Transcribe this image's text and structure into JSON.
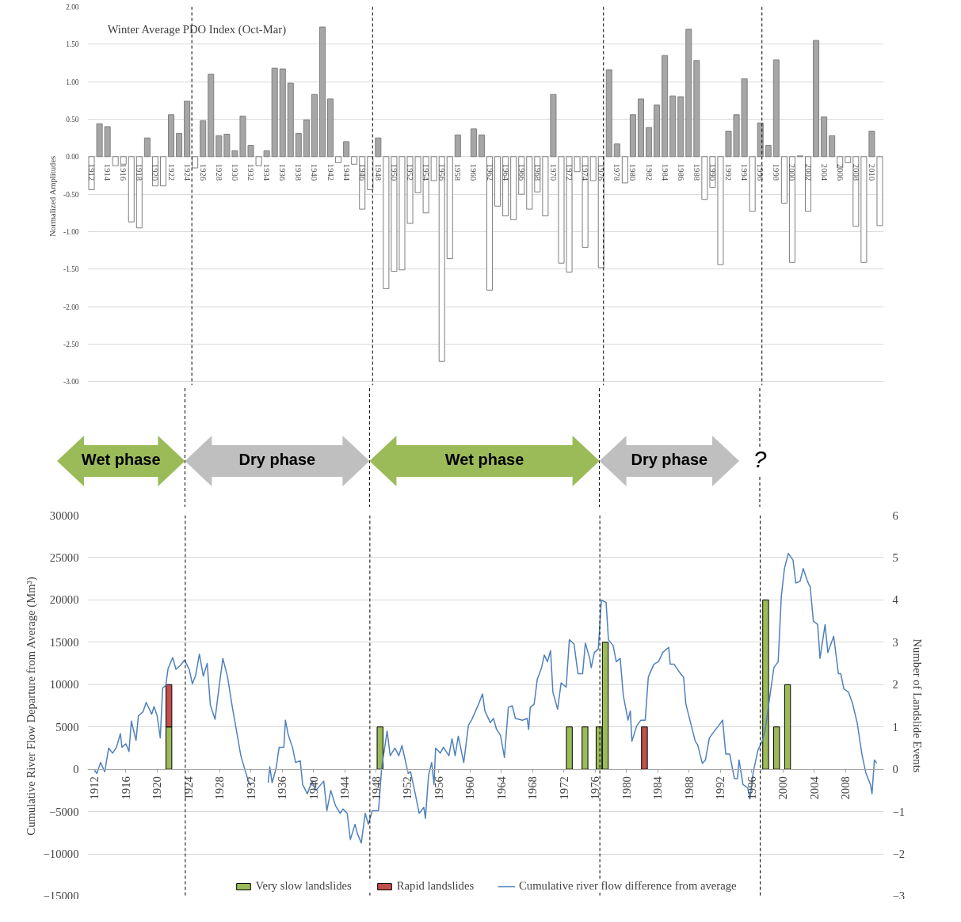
{
  "chart_data": [
    {
      "type": "bar",
      "title": "Winter Average PDO Index (Oct-Mar)",
      "ylabel": "Normalized Amplitudes",
      "x": [
        1912,
        1913,
        1914,
        1915,
        1916,
        1917,
        1918,
        1919,
        1920,
        1921,
        1922,
        1923,
        1924,
        1925,
        1926,
        1927,
        1928,
        1929,
        1930,
        1931,
        1932,
        1933,
        1934,
        1935,
        1936,
        1937,
        1938,
        1939,
        1940,
        1941,
        1942,
        1943,
        1944,
        1945,
        1946,
        1947,
        1948,
        1949,
        1950,
        1951,
        1952,
        1953,
        1954,
        1955,
        1956,
        1957,
        1958,
        1959,
        1960,
        1961,
        1962,
        1963,
        1964,
        1965,
        1966,
        1967,
        1968,
        1969,
        1970,
        1971,
        1972,
        1973,
        1974,
        1975,
        1976,
        1977,
        1978,
        1979,
        1980,
        1981,
        1982,
        1983,
        1984,
        1985,
        1986,
        1987,
        1988,
        1989,
        1990,
        1991,
        1992,
        1993,
        1994,
        1995,
        1996,
        1997,
        1998,
        1999,
        2000,
        2001,
        2002,
        2003,
        2004,
        2005,
        2006,
        2007,
        2008,
        2009,
        2010,
        2011
      ],
      "values": [
        -0.44,
        0.44,
        0.4,
        -0.12,
        -0.1,
        -0.87,
        -0.95,
        0.25,
        -0.39,
        -0.39,
        0.56,
        0.31,
        0.74,
        -0.15,
        0.48,
        1.1,
        0.28,
        0.3,
        0.08,
        0.54,
        0.15,
        -0.12,
        0.08,
        1.18,
        1.17,
        0.98,
        0.31,
        0.49,
        0.83,
        1.73,
        0.77,
        -0.08,
        0.2,
        -0.1,
        -0.7,
        -0.44,
        0.25,
        -1.76,
        -1.53,
        -1.51,
        -0.89,
        -0.48,
        -0.75,
        -0.32,
        -2.73,
        -1.36,
        0.29,
        null,
        0.37,
        0.29,
        -1.78,
        -0.66,
        -0.79,
        -0.84,
        -0.5,
        -0.7,
        -0.47,
        -0.79,
        0.83,
        -1.42,
        -1.54,
        -0.2,
        -1.21,
        -0.32,
        -1.48,
        1.16,
        0.17,
        -0.35,
        0.56,
        0.77,
        0.39,
        0.69,
        1.35,
        0.81,
        0.8,
        1.7,
        1.28,
        -0.57,
        -0.41,
        -1.44,
        0.34,
        0.56,
        1.04,
        -0.73,
        0.45,
        0.15,
        1.29,
        -0.62,
        -1.41,
        0.01,
        -0.73,
        1.55,
        0.53,
        0.28,
        -0.15,
        -0.08,
        -0.93,
        -1.41,
        0.34,
        -0.92
      ],
      "colors": [
        "#ffffff",
        "#a6a6a6",
        "#a6a6a6",
        "#ffffff",
        "#ffffff",
        "#ffffff",
        "#ffffff",
        "#a6a6a6",
        "#ffffff",
        "#ffffff",
        "#a6a6a6",
        "#a6a6a6",
        "#a6a6a6",
        "#ffffff",
        "#a6a6a6",
        "#a6a6a6",
        "#a6a6a6",
        "#a6a6a6",
        "#a6a6a6",
        "#a6a6a6",
        "#a6a6a6",
        "#ffffff",
        "#a6a6a6",
        "#a6a6a6",
        "#a6a6a6",
        "#a6a6a6",
        "#a6a6a6",
        "#a6a6a6",
        "#a6a6a6",
        "#a6a6a6",
        "#a6a6a6",
        "#ffffff",
        "#a6a6a6",
        "#ffffff",
        "#ffffff",
        "#ffffff",
        "#a6a6a6",
        "#ffffff",
        "#ffffff",
        "#ffffff",
        "#ffffff",
        "#ffffff",
        "#ffffff",
        "#ffffff",
        "#ffffff",
        "#ffffff",
        "#a6a6a6",
        "#a6a6a6",
        "#a6a6a6",
        "#a6a6a6",
        "#ffffff",
        "#ffffff",
        "#ffffff",
        "#ffffff",
        "#ffffff",
        "#ffffff",
        "#ffffff",
        "#ffffff",
        "#a6a6a6",
        "#ffffff",
        "#ffffff",
        "#ffffff",
        "#ffffff",
        "#ffffff",
        "#ffffff",
        "#a6a6a6",
        "#a6a6a6",
        "#ffffff",
        "#a6a6a6",
        "#a6a6a6",
        "#a6a6a6",
        "#a6a6a6",
        "#a6a6a6",
        "#a6a6a6",
        "#a6a6a6",
        "#a6a6a6",
        "#a6a6a6",
        "#ffffff",
        "#ffffff",
        "#ffffff",
        "#a6a6a6",
        "#a6a6a6",
        "#a6a6a6",
        "#ffffff",
        "#a6a6a6",
        "#a6a6a6",
        "#a6a6a6",
        "#ffffff",
        "#ffffff",
        "#a6a6a6",
        "#ffffff",
        "#a6a6a6",
        "#a6a6a6",
        "#a6a6a6",
        "#ffffff",
        "#ffffff",
        "#ffffff",
        "#ffffff",
        "#a6a6a6",
        "#ffffff"
      ],
      "xlim": [
        1911.5,
        2011.5
      ],
      "xticks": [
        1912,
        1914,
        1916,
        1918,
        1920,
        1922,
        1924,
        1926,
        1928,
        1930,
        1932,
        1934,
        1936,
        1938,
        1940,
        1942,
        1944,
        1946,
        1948,
        1950,
        1952,
        1954,
        1956,
        1958,
        1960,
        1962,
        1964,
        1966,
        1968,
        1970,
        1972,
        1974,
        1976,
        1978,
        1980,
        1982,
        1984,
        1986,
        1988,
        1990,
        1992,
        1994,
        1996,
        1998,
        2000,
        2002,
        2004,
        2006,
        2008,
        2010
      ],
      "ylim": [
        -3.05,
        2.0
      ],
      "yticks": [
        {
          "value": 2,
          "label": "2.00"
        },
        {
          "value": 1.5,
          "label": "1.50"
        },
        {
          "value": 1,
          "label": "1.00"
        },
        {
          "value": 0.5,
          "label": "0.50"
        },
        {
          "value": 0,
          "label": "0.00"
        },
        {
          "value": -0.5,
          "label": "-0.50"
        },
        {
          "value": -1,
          "label": "-1.00"
        },
        {
          "value": -1.5,
          "label": "-1.50"
        },
        {
          "value": -2,
          "label": "-2.00"
        },
        {
          "value": -2.5,
          "label": "-2.50"
        },
        {
          "value": -3,
          "label": "-3.00"
        }
      ],
      "grid": "y",
      "ref_lines": [
        {
          "axis": "x",
          "value": 1924.6,
          "line_style": "dashed",
          "color": "#000000"
        },
        {
          "axis": "x",
          "value": 1947.3,
          "line_style": "dashed",
          "color": "#000000"
        },
        {
          "axis": "x",
          "value": 1976.3,
          "line_style": "dashed",
          "color": "#000000"
        },
        {
          "axis": "x",
          "value": 1996.2,
          "line_style": "dashed",
          "color": "#000000"
        }
      ]
    },
    {
      "type": "line",
      "ylabel": "Cumulative River Flow Departure from Average (Mm³)",
      "y2label": "Number of Landslide Events",
      "series": [
        {
          "name": "Very slow landslides",
          "type": "bar",
          "axis": "y2",
          "color": "#9bbb59",
          "x": [
            1921.5,
            1948.5,
            1972.7,
            1974.7,
            1976.5,
            1977.3,
            1997.8,
            1999.2,
            2000.6
          ],
          "values": [
            1,
            1,
            1,
            1,
            1,
            3,
            4,
            1,
            2
          ]
        },
        {
          "name": "Rapid landslides",
          "type": "bar",
          "axis": "y2",
          "color": "#c0504d",
          "x": [
            1921.5,
            1982.3
          ],
          "base": [
            1,
            0
          ],
          "values": [
            1,
            1
          ]
        },
        {
          "name": "Cumulative river flow difference from average",
          "type": "line",
          "color": "#4f81bd",
          "x": [
            1912.0,
            1912.3,
            1912.76,
            1913.3,
            1913.8,
            1914.3,
            1914.8,
            1915.3,
            1915.5,
            1916.0,
            1916.4,
            1916.7,
            1917.3,
            1917.6,
            1918.2,
            1918.6,
            1919.3,
            1919.6,
            1920.0,
            1920.4,
            1920.7,
            1921.1,
            1921.4,
            1922.0,
            1922.4,
            1923.0,
            1923.5,
            1924.1,
            1924.5,
            1924.9,
            1925.4,
            1925.9,
            1926.4,
            1926.8,
            1927.4,
            1927.9,
            1928.4,
            1929.0,
            1929.6,
            1930.1,
            1930.7,
            1931.3,
            1931.8,
            1932.0,
            1933.0,
            1934.2,
            1934.4,
            1934.7,
            1935.2,
            1935.6,
            1936.2,
            1936.4,
            1936.75,
            1937.3,
            1937.7,
            1938.3,
            1938.6,
            1939.2,
            1939.8,
            1940.3,
            1941.3,
            1941.7,
            1942.2,
            1942.8,
            1943.4,
            1943.75,
            1944.3,
            1944.7,
            1945.3,
            1945.6,
            1946.1,
            1946.6,
            1947.0,
            1947.5,
            1948.3,
            1948.7,
            1949.4,
            1949.8,
            1950.4,
            1950.9,
            1951.3,
            1952.1,
            1952.4,
            1953.0,
            1953.5,
            1954.1,
            1954.3,
            1954.7,
            1955.1,
            1955.4,
            1955.6,
            1956.2,
            1956.6,
            1957.3,
            1957.7,
            1958.1,
            1958.5,
            1959.2,
            1959.8,
            1960.2,
            1961.1,
            1961.6,
            1961.9,
            1962.6,
            1963.0,
            1963.4,
            1963.9,
            1964.4,
            1964.9,
            1965.4,
            1965.8,
            1966.7,
            1967.3,
            1967.5,
            1967.7,
            1968.2,
            1968.6,
            1969.15,
            1969.5,
            1969.9,
            1970.3,
            1970.6,
            1971.2,
            1971.65,
            1972.3,
            1972.7,
            1973.3,
            1973.8,
            1974.4,
            1974.75,
            1975.3,
            1975.5,
            1975.9,
            1976.4,
            1976.8,
            1977.4,
            1977.7,
            1978.3,
            1978.7,
            1979.2,
            1979.6,
            1980.2,
            1980.5,
            1980.7,
            1981.3,
            1981.85,
            1982.4,
            1982.8,
            1983.5,
            1984.1,
            1984.65,
            1985.4,
            1985.6,
            1986.1,
            1986.9,
            1987.3,
            1987.6,
            1988.2,
            1988.8,
            1989.1,
            1989.7,
            1990.1,
            1990.6,
            1991.4,
            1991.75,
            1992.3,
            1992.7,
            1993.2,
            1993.8,
            1994.2,
            1994.4,
            1994.9,
            1995.5,
            1995.8,
            1996.2,
            1996.8,
            1997.35,
            1997.7,
            1998.85,
            1999.4,
            1999.8,
            2000.2,
            2000.7,
            2001.3,
            2001.65,
            2002.2,
            2002.6,
            2003.15,
            2003.5,
            2003.9,
            2004.45,
            2004.75,
            2005.4,
            2005.75,
            2006.5,
            2007.1,
            2007.4,
            2007.8,
            2008.4,
            2008.9,
            2009.5,
            2010.1,
            2010.6,
            2011.2,
            2011.4,
            2011.7,
            2012.0
          ],
          "values": [
            -100,
            -500,
            800,
            -300,
            2500,
            1900,
            2600,
            4200,
            2600,
            3000,
            2100,
            5700,
            3400,
            6300,
            6800,
            7900,
            6500,
            7400,
            6300,
            3700,
            9600,
            9900,
            11900,
            13200,
            11800,
            12300,
            12900,
            11800,
            10100,
            11000,
            13600,
            11000,
            12500,
            7600,
            5900,
            9600,
            13100,
            10900,
            7400,
            4800,
            1600,
            -300,
            -1800,
            -1600,
            null,
            -1600,
            300,
            -1600,
            100,
            2600,
            2600,
            5800,
            4100,
            2600,
            800,
            1000,
            -1800,
            -2900,
            -1400,
            -2500,
            -1400,
            -4900,
            -2500,
            -4300,
            -5200,
            -4700,
            -5200,
            -8300,
            -6500,
            -7600,
            -8700,
            -5200,
            -6500,
            -4900,
            -4900,
            100,
            4500,
            1600,
            2500,
            1600,
            2800,
            -500,
            -300,
            -2900,
            -5200,
            -4500,
            -5800,
            -700,
            800,
            -1800,
            2500,
            1900,
            2600,
            1600,
            3600,
            1600,
            3900,
            800,
            5200,
            5800,
            7700,
            8900,
            6900,
            5500,
            6000,
            4700,
            4000,
            1400,
            7300,
            7500,
            6000,
            5800,
            6000,
            4700,
            7300,
            7700,
            10600,
            12000,
            13500,
            12700,
            14000,
            9100,
            7100,
            10200,
            9700,
            15300,
            14800,
            11300,
            11300,
            14900,
            13100,
            12000,
            13800,
            14200,
            20000,
            19700,
            15300,
            14600,
            12700,
            13100,
            8700,
            5800,
            6900,
            3300,
            5100,
            5800,
            5800,
            10900,
            12400,
            12700,
            13800,
            14400,
            12400,
            12400,
            11300,
            10900,
            7700,
            5500,
            3300,
            2900,
            700,
            1100,
            3700,
            4700,
            5100,
            5800,
            1800,
            1800,
            -1100,
            -1100,
            1100,
            -1800,
            -2200,
            -3500,
            -400,
            2200,
            3300,
            4400,
            12000,
            12700,
            20400,
            23700,
            25500,
            24700,
            22000,
            22200,
            23700,
            22200,
            21500,
            17500,
            17100,
            13100,
            17100,
            13800,
            15700,
            11300,
            11300,
            9500,
            9100,
            7800,
            5500,
            1800,
            -400,
            -1800,
            -2900,
            1100,
            700
          ]
        }
      ],
      "xlim": [
        1911.1,
        2012.9
      ],
      "xticks": [
        1912,
        1916,
        1920,
        1924,
        1928,
        1932,
        1936,
        1940,
        1944,
        1948,
        1952,
        1956,
        1960,
        1964,
        1968,
        1972,
        1976,
        1980,
        1984,
        1988,
        1992,
        1996,
        2000,
        2004,
        2008
      ],
      "ylim": [
        -15000,
        30000
      ],
      "yticks": [
        -15000,
        -10000,
        -5000,
        0,
        5000,
        10000,
        15000,
        20000,
        25000,
        30000
      ],
      "y2lim": [
        -3,
        6
      ],
      "y2ticks": [
        -3,
        -2,
        -1,
        0,
        1,
        2,
        3,
        4,
        5,
        6
      ],
      "grid": "y",
      "legend": "bottom",
      "ref_lines": [
        {
          "axis": "x",
          "value": 1923.6,
          "line_style": "dashed",
          "color": "#000000"
        },
        {
          "axis": "x",
          "value": 1947.2,
          "line_style": "dashed",
          "color": "#000000"
        },
        {
          "axis": "x",
          "value": 1976.6,
          "line_style": "dashed",
          "color": "#000000"
        },
        {
          "axis": "x",
          "value": 1997.1,
          "line_style": "dashed",
          "color": "#000000"
        }
      ],
      "annotations": [
        "Wet phase",
        "Dry phase",
        "Wet phase",
        "Dry phase",
        "?"
      ]
    }
  ]
}
